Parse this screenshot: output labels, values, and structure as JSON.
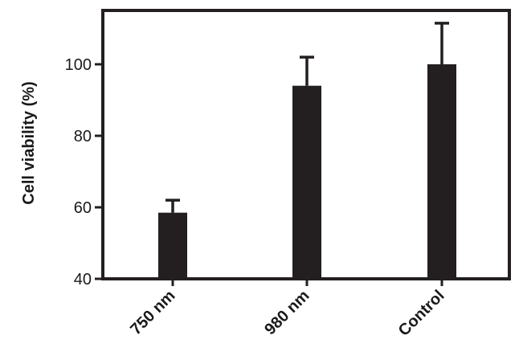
{
  "chart_data": {
    "type": "bar",
    "categories": [
      "750 nm",
      "980 nm",
      "Control"
    ],
    "values": [
      58.5,
      94,
      100
    ],
    "error": [
      3.5,
      8,
      11.5
    ],
    "ylabel": "Cell viability (%)",
    "xlabel": "",
    "ylim": [
      40,
      115
    ],
    "yticks": [
      40,
      60,
      80,
      100
    ],
    "grid": false,
    "bar_color": "#231f20",
    "axis_color": "#231f20"
  }
}
